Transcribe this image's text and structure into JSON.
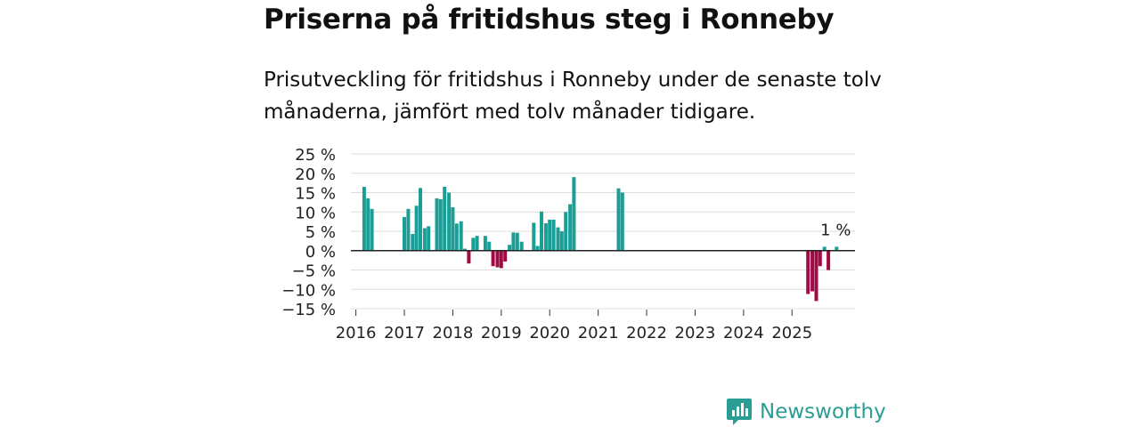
{
  "title": "Priserna på fritidshus steg i Ronneby",
  "subtitle": "Prisutveckling för fritidshus i Ronneby under de senaste tolv månaderna, jämfört med tolv månader tidigare.",
  "brand": {
    "name": "Newsworthy",
    "color": "#2a9d94"
  },
  "colors": {
    "positive": "#1a9e96",
    "negative": "#a10a42",
    "grid": "#dddddd",
    "zero": "#222222"
  },
  "chart_data": {
    "type": "bar",
    "title": "Priserna på fritidshus steg i Ronneby",
    "xlabel": "",
    "ylabel": "",
    "ylim": [
      -15,
      25
    ],
    "xlim": [
      2015.75,
      2026.3
    ],
    "yticks": [
      25,
      20,
      15,
      10,
      5,
      0,
      -5,
      -10,
      -15
    ],
    "ytick_labels": [
      "25 %",
      "20 %",
      "15 %",
      "10 %",
      "5 %",
      "0 %",
      "−5 %",
      "−10 %",
      "−15 %"
    ],
    "xticks": [
      "2016",
      "2017",
      "2018",
      "2019",
      "2020",
      "2021",
      "2022",
      "2023",
      "2024",
      "2025"
    ],
    "annotation": {
      "text": "1 %",
      "x": 2025.92,
      "y": 1
    },
    "x": [
      2016.17,
      2016.25,
      2016.33,
      2017.0,
      2017.08,
      2017.17,
      2017.25,
      2017.33,
      2017.42,
      2017.5,
      2017.67,
      2017.75,
      2017.83,
      2017.92,
      2018.0,
      2018.08,
      2018.17,
      2018.25,
      2018.33,
      2018.42,
      2018.5,
      2018.67,
      2018.75,
      2018.83,
      2018.92,
      2019.0,
      2019.08,
      2019.17,
      2019.25,
      2019.33,
      2019.42,
      2019.67,
      2019.75,
      2019.83,
      2019.92,
      2020.0,
      2020.08,
      2020.17,
      2020.25,
      2020.33,
      2020.42,
      2020.5,
      2021.42,
      2021.5,
      2025.33,
      2025.42,
      2025.5,
      2025.58,
      2025.67,
      2025.75,
      2025.92
    ],
    "values": [
      16.5,
      13.5,
      10.8,
      8.7,
      10.8,
      4.3,
      11.6,
      16.2,
      5.8,
      6.3,
      13.5,
      13.3,
      16.5,
      15.0,
      11.2,
      7.0,
      7.6,
      0.5,
      -3.3,
      3.3,
      3.8,
      3.8,
      2.3,
      -4.0,
      -4.3,
      -4.5,
      -2.8,
      1.5,
      4.7,
      4.6,
      2.3,
      7.2,
      1.2,
      10.1,
      7.1,
      8.0,
      8.0,
      6.0,
      5.0,
      10.0,
      12.0,
      19.0,
      16.1,
      15.0,
      -11.2,
      -10.5,
      -13.0,
      -4.0,
      1.0,
      -5.0,
      1.0
    ]
  }
}
